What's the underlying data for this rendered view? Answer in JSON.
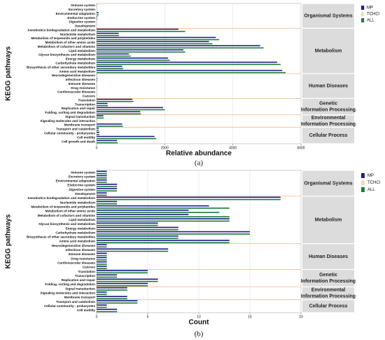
{
  "chart_data": [
    {
      "type": "bar",
      "orientation": "horizontal",
      "panel_label": "(a)",
      "xlabel": "Relative abundance",
      "ylabel": "KEGG pathways",
      "legend": "top-right",
      "grid": true,
      "xlim": [
        0,
        6000
      ],
      "xticks": [
        0,
        2000,
        4000,
        6000
      ],
      "groups": [
        {
          "label": [
            "Organismal Systems"
          ],
          "categories": [
            "Immune system",
            "Excretory system",
            "Environmental adaptation",
            "Endocrine system",
            "Digestive system",
            "Development"
          ]
        },
        {
          "label": [
            "Metabolism"
          ],
          "categories": [
            "Xenobiotics biodegradation and metabolism",
            "Nucleotide metabolism",
            "Metabolism of terpenoids and polyketides",
            "Metabolism of other amino acids",
            "Metabolism of cofactors and vitamins",
            "Lipid metabolism",
            "Glycan biosynthesis and metabolism",
            "Energy metabolism",
            "Carbohydrate metabolism",
            "Biosynthesis of other secondary metabolites",
            "Amino acid metabolism"
          ]
        },
        {
          "label": [
            "Human Diseases"
          ],
          "categories": [
            "Neurodegenerative diseases",
            "Infectious diseases",
            "Immune diseases",
            "Drug resistance",
            "Cardiovascular diseases",
            "Cancers"
          ]
        },
        {
          "label": [
            "Genetic",
            "Information Processing"
          ],
          "categories": [
            "Translation",
            "Transcription",
            "Replication and repair",
            "Folding, sorting and degradation"
          ]
        },
        {
          "label": [
            "Environmental",
            "Information Processing"
          ],
          "categories": [
            "Signal transduction",
            "Signaling molecules and interaction",
            "Membrane transport"
          ]
        },
        {
          "label": [
            "Cellular Process"
          ],
          "categories": [
            "Transport and catabolism",
            "Cellular community - prokaryotes",
            "Cell motility",
            "Cell growth and death"
          ]
        }
      ],
      "series": [
        {
          "name": "MP",
          "color": "#1c1c8a",
          "values": [
            10,
            5,
            60,
            20,
            5,
            5,
            2400,
            650,
            3500,
            3300,
            4800,
            2550,
            950,
            2100,
            5300,
            750,
            5450,
            10,
            20,
            5,
            10,
            5,
            5,
            1050,
            320,
            1950,
            1280,
            200,
            10,
            750,
            60,
            80,
            1700,
            600
          ]
        },
        {
          "name": "TCHCl",
          "color": "#f3dfb6",
          "values": [
            0,
            0,
            0,
            0,
            0,
            0,
            0,
            0,
            0,
            0,
            0,
            0,
            0,
            0,
            0,
            0,
            0,
            0,
            0,
            0,
            0,
            0,
            0,
            0,
            0,
            0,
            0,
            0,
            0,
            0,
            0,
            0,
            0,
            0
          ]
        },
        {
          "name": "ALL",
          "color": "#1e7a3c",
          "values": [
            10,
            5,
            62,
            21,
            5,
            5,
            2600,
            660,
            3600,
            3400,
            4900,
            2600,
            1000,
            2150,
            5400,
            780,
            5550,
            10,
            21,
            5,
            10,
            5,
            5,
            1080,
            330,
            2000,
            1300,
            210,
            10,
            770,
            62,
            82,
            1750,
            620
          ]
        }
      ]
    },
    {
      "type": "bar",
      "orientation": "horizontal",
      "panel_label": "(b)",
      "xlabel": "Count",
      "ylabel": "KEGG pathways",
      "legend": "top-right",
      "grid": true,
      "xlim": [
        0,
        20
      ],
      "xticks": [
        0,
        5,
        10,
        15,
        20
      ],
      "groups": [
        {
          "label": [
            "Organismal Systems"
          ],
          "categories": [
            "Immune system",
            "Excretory system",
            "Environmental adaptation",
            "Endocrine system",
            "Digestive system",
            "Development"
          ]
        },
        {
          "label": [
            "Metabolism"
          ],
          "categories": [
            "Xenobiotics biodegradation and metabolism",
            "Nucleotide metabolism",
            "Metabolism of terpenoids and polyketides",
            "Metabolism of other amino acids",
            "Metabolism of cofactors and vitamins",
            "Lipid metabolism",
            "Glycan biosynthesis and metabolism",
            "Energy metabolism",
            "Carbohydrate metabolism",
            "Biosynthesis of other secondary metabolites",
            "Amino acid metabolism"
          ]
        },
        {
          "label": [
            "Human Diseases"
          ],
          "categories": [
            "Neurodegenerative diseases",
            "Infectious diseases",
            "Immune diseases",
            "Drug resistance",
            "Cardiovascular diseases",
            "Cancers"
          ]
        },
        {
          "label": [
            "Genetic",
            "Information Processing"
          ],
          "categories": [
            "Translation",
            "Transcription",
            "Replication and repair",
            "Folding, sorting and degradation"
          ]
        },
        {
          "label": [
            "Environmental",
            "Information Processing"
          ],
          "categories": [
            "Signal transduction",
            "Signaling molecules and interaction",
            "Membrane transport"
          ]
        },
        {
          "label": [
            "Cellular Process"
          ],
          "categories": [
            "Transport and catabolism",
            "Cellular community - prokaryotes",
            "Cell motility"
          ]
        }
      ],
      "series": [
        {
          "name": "MP",
          "color": "#1c1c8a",
          "values": [
            1,
            1,
            1,
            2,
            2,
            1,
            18,
            2,
            11,
            9,
            9,
            13,
            6,
            8,
            15,
            8,
            13,
            1,
            7,
            1,
            1,
            1,
            1,
            5,
            2,
            6,
            5,
            3,
            1,
            3,
            4,
            1,
            2
          ]
        },
        {
          "name": "TCHCl",
          "color": "#f3dfb6",
          "values": [
            0,
            0,
            0,
            0,
            0,
            0,
            0,
            0,
            0,
            0,
            0,
            0,
            0,
            0,
            0,
            0,
            0,
            0,
            0,
            0,
            0,
            0,
            0,
            0,
            0,
            0,
            0,
            0,
            0,
            0,
            0,
            0,
            0
          ]
        },
        {
          "name": "ALL",
          "color": "#1e7a3c",
          "values": [
            1,
            1,
            1,
            2,
            2,
            1,
            18,
            2,
            13,
            12,
            13,
            13,
            6,
            8,
            15,
            8,
            13,
            1,
            7,
            1,
            1,
            1,
            1,
            5,
            2,
            6,
            5,
            3,
            1,
            3,
            4,
            1,
            2
          ]
        }
      ]
    }
  ]
}
